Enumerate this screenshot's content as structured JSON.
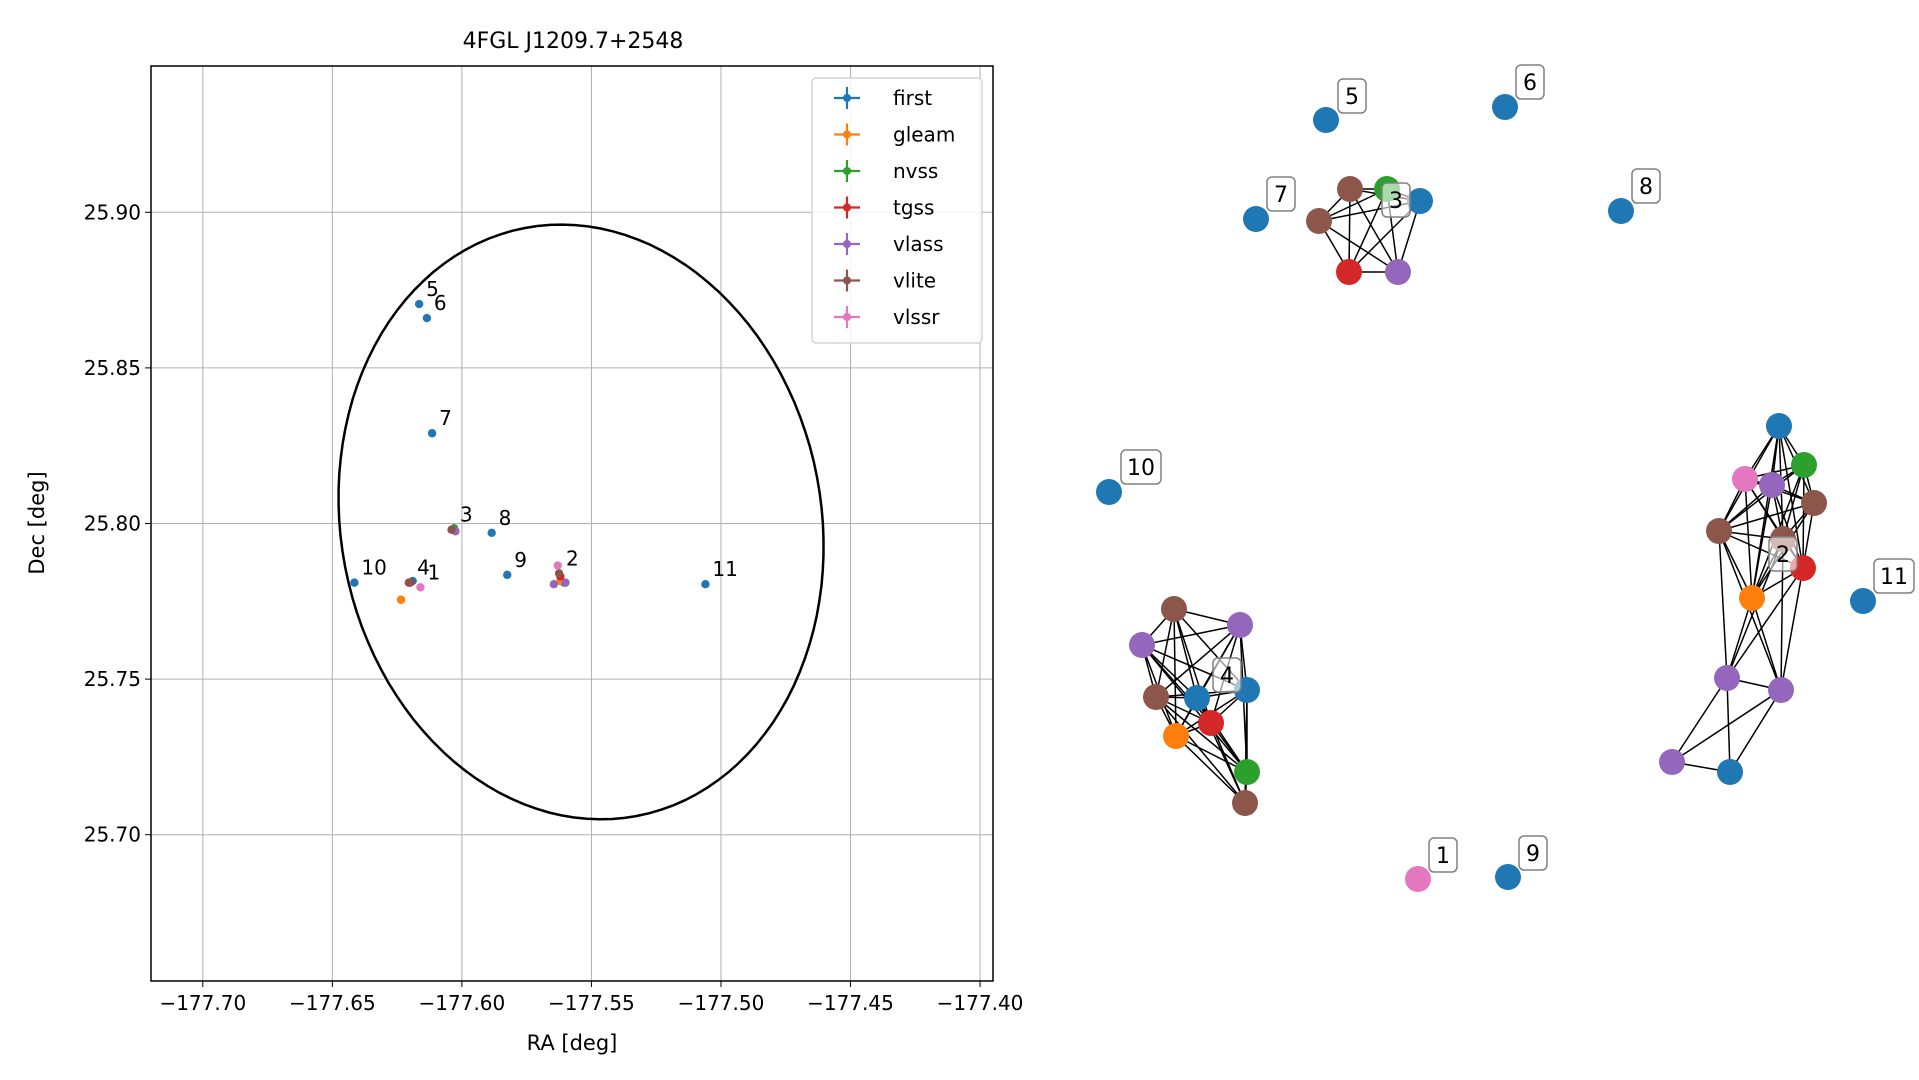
{
  "chart_data": [
    {
      "type": "scatter",
      "title": "4FGL J1209.7+2548",
      "xlabel": "RA [deg]",
      "ylabel": "Dec [deg]",
      "xlim": [
        -177.72,
        -177.395
      ],
      "ylim": [
        25.653,
        25.947
      ],
      "xticks": [
        -177.7,
        -177.65,
        -177.6,
        -177.55,
        -177.5,
        -177.45,
        -177.4
      ],
      "xtick_labels": [
        "−177.70",
        "−177.65",
        "−177.60",
        "−177.55",
        "−177.50",
        "−177.45",
        "−177.40"
      ],
      "yticks": [
        25.7,
        25.75,
        25.8,
        25.85,
        25.9
      ],
      "ytick_labels": [
        "25.70",
        "25.75",
        "25.80",
        "25.85",
        "25.90"
      ],
      "grid": true,
      "legend_position": "top-right",
      "series": [
        {
          "name": "first",
          "color": "#1f77b4",
          "points": [
            {
              "x": -177.6165,
              "y": 25.8705
            },
            {
              "x": -177.6135,
              "y": 25.866
            },
            {
              "x": -177.6115,
              "y": 25.829
            },
            {
              "x": -177.5885,
              "y": 25.797
            },
            {
              "x": -177.5825,
              "y": 25.7835
            },
            {
              "x": -177.6415,
              "y": 25.781
            },
            {
              "x": -177.506,
              "y": 25.7805
            },
            {
              "x": -177.619,
              "y": 25.7815
            },
            {
              "x": -177.5605,
              "y": 25.781
            }
          ]
        },
        {
          "name": "gleam",
          "color": "#ff7f0e",
          "points": [
            {
              "x": -177.6235,
              "y": 25.7755
            },
            {
              "x": -177.562,
              "y": 25.7815
            }
          ]
        },
        {
          "name": "nvss",
          "color": "#2ca02c",
          "points": [
            {
              "x": -177.603,
              "y": 25.7985
            }
          ]
        },
        {
          "name": "tgss",
          "color": "#d62728",
          "points": [
            {
              "x": -177.62,
              "y": 25.781
            },
            {
              "x": -177.562,
              "y": 25.783
            }
          ]
        },
        {
          "name": "vlass",
          "color": "#9467bd",
          "points": [
            {
              "x": -177.6025,
              "y": 25.7975
            },
            {
              "x": -177.5645,
              "y": 25.7805
            },
            {
              "x": -177.56,
              "y": 25.781
            }
          ]
        },
        {
          "name": "vlite",
          "color": "#8c564b",
          "points": [
            {
              "x": -177.604,
              "y": 25.798
            },
            {
              "x": -177.6205,
              "y": 25.781
            },
            {
              "x": -177.5625,
              "y": 25.784
            }
          ]
        },
        {
          "name": "vlssr",
          "color": "#e377c2",
          "points": [
            {
              "x": -177.616,
              "y": 25.7795
            },
            {
              "x": -177.563,
              "y": 25.7865
            }
          ]
        }
      ],
      "annotations": [
        {
          "text": "5",
          "x": -177.6165,
          "y": 25.8705
        },
        {
          "text": "6",
          "x": -177.6135,
          "y": 25.866
        },
        {
          "text": "7",
          "x": -177.6115,
          "y": 25.829
        },
        {
          "text": "3",
          "x": -177.6035,
          "y": 25.798
        },
        {
          "text": "8",
          "x": -177.5885,
          "y": 25.797
        },
        {
          "text": "9",
          "x": -177.5825,
          "y": 25.7835
        },
        {
          "text": "2",
          "x": -177.5625,
          "y": 25.784
        },
        {
          "text": "10",
          "x": -177.6415,
          "y": 25.781
        },
        {
          "text": "4",
          "x": -177.62,
          "y": 25.781
        },
        {
          "text": "1",
          "x": -177.616,
          "y": 25.7795
        },
        {
          "text": "11",
          "x": -177.506,
          "y": 25.7805
        }
      ],
      "ellipse": {
        "center": [
          -177.554,
          25.8005
        ],
        "semi_axes": [
          0.0985,
          0.0905
        ],
        "angle_deg": -52
      }
    },
    {
      "type": "network",
      "clusters": [
        {
          "label": "5",
          "members": [
            "first"
          ]
        },
        {
          "label": "6",
          "members": [
            "first"
          ]
        },
        {
          "label": "7",
          "members": [
            "first"
          ]
        },
        {
          "label": "3",
          "members": [
            "vlite",
            "nvss",
            "first",
            "vlite",
            "tgss",
            "vlass"
          ]
        },
        {
          "label": "8",
          "members": [
            "first"
          ]
        },
        {
          "label": "10",
          "members": [
            "first"
          ]
        },
        {
          "label": "2",
          "members": [
            "first",
            "vlssr",
            "vlass",
            "nvss",
            "vlite",
            "vlite",
            "vlite",
            "tgss",
            "gleam",
            "vlass",
            "vlass",
            "vlass",
            "first"
          ]
        },
        {
          "label": "11",
          "members": [
            "first"
          ]
        },
        {
          "label": "4",
          "members": [
            "vlite",
            "vlass",
            "vlass",
            "first",
            "first",
            "vlite",
            "gleam",
            "tgss",
            "nvss",
            "vlite"
          ]
        },
        {
          "label": "1",
          "members": [
            "vlssr"
          ]
        },
        {
          "label": "9",
          "members": [
            "first"
          ]
        }
      ]
    }
  ]
}
